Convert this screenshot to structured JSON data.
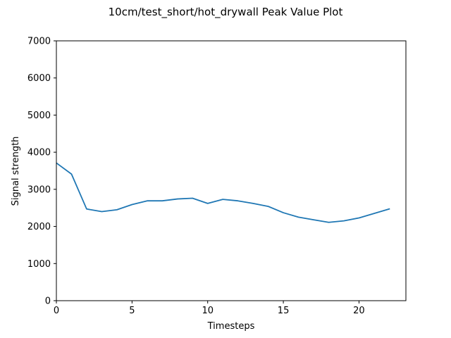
{
  "chart_data": {
    "type": "line",
    "title": "10cm/test_short/hot_drywall Peak Value Plot",
    "xlabel": "Timesteps",
    "ylabel": "Signal strength",
    "xlim": [
      0,
      23.1
    ],
    "ylim": [
      0,
      7000
    ],
    "xticks": [
      0,
      5,
      10,
      15,
      20
    ],
    "yticks": [
      0,
      1000,
      2000,
      3000,
      4000,
      5000,
      6000,
      7000
    ],
    "xtick_labels": [
      "0",
      "5",
      "10",
      "15",
      "20"
    ],
    "ytick_labels": [
      "0",
      "1000",
      "2000",
      "3000",
      "4000",
      "5000",
      "6000",
      "7000"
    ],
    "grid": false,
    "legend": "none",
    "series": [
      {
        "color": "#1f77b4",
        "x": [
          0,
          1,
          2,
          3,
          4,
          5,
          6,
          7,
          8,
          9,
          10,
          11,
          12,
          13,
          14,
          15,
          16,
          17,
          18,
          19,
          20,
          21,
          22
        ],
        "values": [
          3710,
          3410,
          2470,
          2400,
          2450,
          2590,
          2690,
          2690,
          2740,
          2760,
          2620,
          2730,
          2690,
          2620,
          2540,
          2370,
          2250,
          2180,
          2110,
          2150,
          2230,
          2350,
          2470
        ]
      }
    ]
  }
}
